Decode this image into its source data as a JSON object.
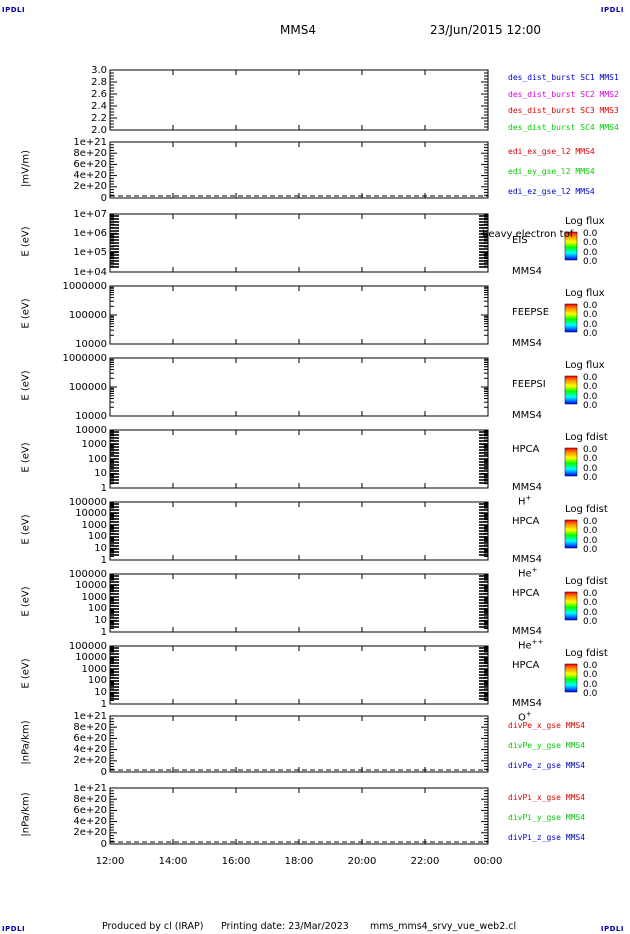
{
  "corner_label": "IPDLI",
  "header": {
    "spacecraft": "MMS4",
    "datetime": "23/Jun/2015 12:00"
  },
  "footer": {
    "produced_by": "Produced by cl (IRAP)",
    "printing_date": "Printing date: 23/Mar/2023",
    "filename": "mms_mms4_srvy_vue_web2.cl"
  },
  "colors": {
    "red": "#dd0000",
    "green": "#00cc00",
    "blue": "#0000cc",
    "magenta": "#dd00dd",
    "dark_blue": "#0000aa"
  },
  "chart_data": {
    "type": "line",
    "x_ticks": [
      "12:00",
      "14:00",
      "16:00",
      "18:00",
      "20:00",
      "22:00",
      "00:00"
    ],
    "panels": [
      {
        "ylabel": "",
        "ticks": [
          "3.0",
          "2.8",
          "2.6",
          "2.4",
          "2.2",
          "2.0"
        ],
        "ylim": [
          2.0,
          3.0
        ],
        "legend": [
          {
            "text": "des_dist_burst SC1 MMS1",
            "color": "#0000cc"
          },
          {
            "text": "des_dist_burst SC2 MMS2",
            "color": "#dd00dd"
          },
          {
            "text": "des_dist_burst SC3 MMS3",
            "color": "#dd0000"
          },
          {
            "text": "des_dist_burst SC4 MMS4",
            "color": "#00cc00"
          }
        ]
      },
      {
        "ylabel": "|mV/m)",
        "ticks": [
          "1e+21",
          "8e+20",
          "6e+20",
          "4e+20",
          "2e+20",
          "0"
        ],
        "ylim": [
          0,
          1e+21
        ],
        "zero_dashed": true,
        "legend": [
          {
            "text": "edi_ex_gse_l2 MMS4",
            "color": "#dd0000"
          },
          {
            "text": "edi_ey_gse_l2 MMS4",
            "color": "#00cc00"
          },
          {
            "text": "edi_ez_gse_l2 MMS4",
            "color": "#0000cc"
          }
        ]
      },
      {
        "ylabel": "E (eV)",
        "ticks": [
          "1e+07",
          "1e+06",
          "1e+05",
          "1e+04"
        ],
        "log": true,
        "instrument": [
          "EIS",
          "MMS4"
        ],
        "overlay_text": "heavy electron tof",
        "cb_title": "Log flux",
        "cb_values": [
          "0.0",
          "0.0",
          "0.0",
          "0.0"
        ]
      },
      {
        "ylabel": "E (eV)",
        "ticks": [
          "1000000",
          "100000",
          "10000"
        ],
        "log": true,
        "instrument": [
          "FEEPSE",
          "MMS4"
        ],
        "cb_title": "Log flux",
        "cb_values": [
          "0.0",
          "0.0",
          "0.0",
          "0.0"
        ]
      },
      {
        "ylabel": "E (eV)",
        "ticks": [
          "1000000",
          "100000",
          "10000"
        ],
        "log": true,
        "instrument": [
          "FEEPSI",
          "MMS4"
        ],
        "cb_title": "Log flux",
        "cb_values": [
          "0.0",
          "0.0",
          "0.0",
          "0.0"
        ]
      },
      {
        "ylabel": "E (eV)",
        "ticks": [
          "10000",
          "1000",
          "100",
          "10",
          "1"
        ],
        "log": true,
        "instrument": [
          "HPCA",
          "MMS4"
        ],
        "species": "H",
        "species_sup": "+",
        "cb_title": "Log fdist",
        "cb_values": [
          "0.0",
          "0.0",
          "0.0",
          "0.0"
        ]
      },
      {
        "ylabel": "E (eV)",
        "ticks": [
          "100000",
          "10000",
          "1000",
          "100",
          "10",
          "1"
        ],
        "log": true,
        "instrument": [
          "HPCA",
          "MMS4"
        ],
        "species": "He",
        "species_sup": "+",
        "cb_title": "Log fdist",
        "cb_values": [
          "0.0",
          "0.0",
          "0.0",
          "0.0"
        ]
      },
      {
        "ylabel": "E (eV)",
        "ticks": [
          "100000",
          "10000",
          "1000",
          "100",
          "10",
          "1"
        ],
        "log": true,
        "instrument": [
          "HPCA",
          "MMS4"
        ],
        "species": "He",
        "species_sup": "++",
        "cb_title": "Log fdist",
        "cb_values": [
          "0.0",
          "0.0",
          "0.0",
          "0.0"
        ]
      },
      {
        "ylabel": "E (eV)",
        "ticks": [
          "100000",
          "10000",
          "1000",
          "100",
          "10",
          "1"
        ],
        "log": true,
        "instrument": [
          "HPCA",
          "MMS4"
        ],
        "species": "O",
        "species_sup": "+",
        "cb_title": "Log fdist",
        "cb_values": [
          "0.0",
          "0.0",
          "0.0",
          "0.0"
        ]
      },
      {
        "ylabel": "|nPa/km)",
        "ticks": [
          "1e+21",
          "8e+20",
          "6e+20",
          "4e+20",
          "2e+20",
          "0"
        ],
        "ylim": [
          0,
          1e+21
        ],
        "zero_dashed": true,
        "legend": [
          {
            "text": "divPe_x_gse MMS4",
            "color": "#dd0000"
          },
          {
            "text": "divPe_y_gse MMS4",
            "color": "#00cc00"
          },
          {
            "text": "divPe_z_gse MMS4",
            "color": "#0000cc"
          }
        ]
      },
      {
        "ylabel": "|nPa/km)",
        "ticks": [
          "1e+21",
          "8e+20",
          "6e+20",
          "4e+20",
          "2e+20",
          "0"
        ],
        "ylim": [
          0,
          1e+21
        ],
        "zero_dashed": true,
        "legend": [
          {
            "text": "divPi_x_gse MMS4",
            "color": "#dd0000"
          },
          {
            "text": "divPi_y_gse MMS4",
            "color": "#00cc00"
          },
          {
            "text": "divPi_z_gse MMS4",
            "color": "#0000cc"
          }
        ]
      }
    ]
  }
}
